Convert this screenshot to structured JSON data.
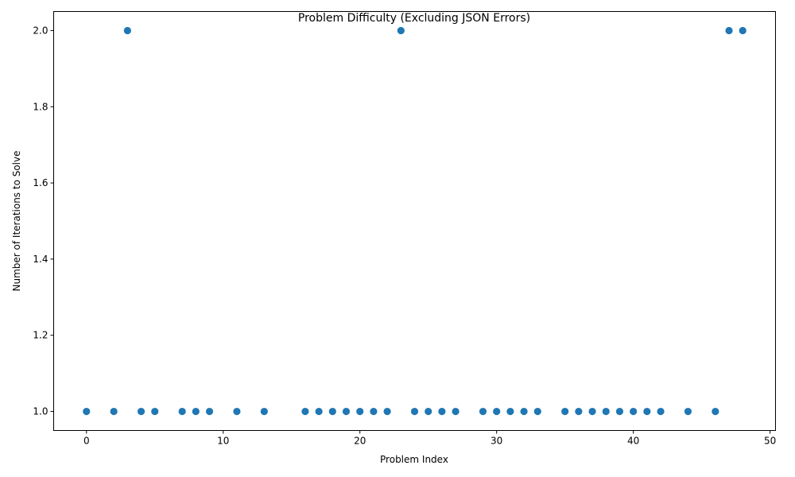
{
  "chart_data": {
    "type": "scatter",
    "title": "Problem Difficulty (Excluding JSON Errors)",
    "xlabel": "Problem Index",
    "ylabel": "Number of Iterations to Solve",
    "xlim": [
      -2.4,
      50.4
    ],
    "ylim": [
      0.95,
      2.05
    ],
    "xticks": [
      0,
      10,
      20,
      30,
      40,
      50
    ],
    "xtick_labels": [
      "0",
      "10",
      "20",
      "30",
      "40",
      "50"
    ],
    "yticks": [
      1.0,
      1.2,
      1.4,
      1.6,
      1.8,
      2.0
    ],
    "ytick_labels": [
      "1.0",
      "1.2",
      "1.4",
      "1.6",
      "1.8",
      "2.0"
    ],
    "grid": false,
    "marker_color": "#1f77b4",
    "x": [
      0,
      2,
      3,
      4,
      5,
      7,
      8,
      9,
      11,
      13,
      16,
      17,
      18,
      19,
      20,
      21,
      22,
      23,
      24,
      25,
      26,
      27,
      29,
      30,
      31,
      32,
      33,
      35,
      36,
      37,
      38,
      39,
      40,
      41,
      42,
      44,
      46,
      47,
      48
    ],
    "y": [
      1,
      1,
      2,
      1,
      1,
      1,
      1,
      1,
      1,
      1,
      1,
      1,
      1,
      1,
      1,
      1,
      1,
      2,
      1,
      1,
      1,
      1,
      1,
      1,
      1,
      1,
      1,
      1,
      1,
      1,
      1,
      1,
      1,
      1,
      1,
      1,
      1,
      2,
      2
    ]
  }
}
